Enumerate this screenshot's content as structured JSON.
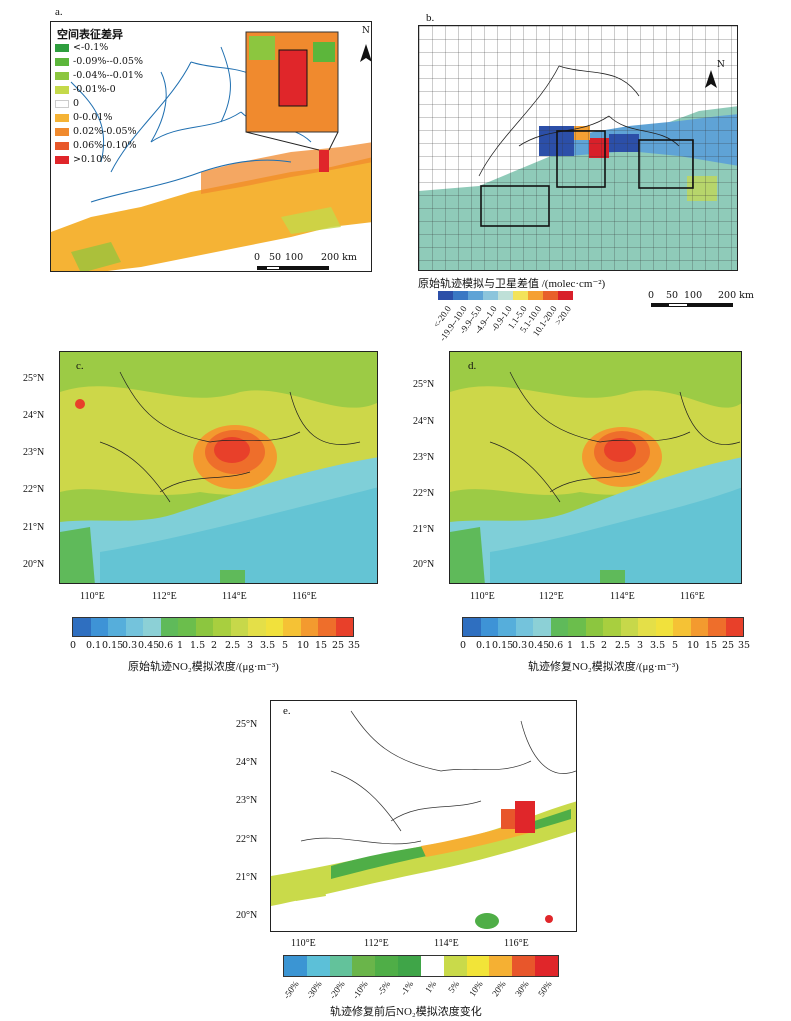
{
  "panels": {
    "a": {
      "label": "a.",
      "legend_title": "空间表征差异",
      "legend": [
        {
          "label": "<-0.1%",
          "color": "#2e9e3e"
        },
        {
          "label": "-0.09%--0.05%",
          "color": "#5cb63b"
        },
        {
          "label": "-0.04%--0.01%",
          "color": "#8cc63f"
        },
        {
          "label": "-0.01%-0",
          "color": "#c4d94a"
        },
        {
          "label": "0",
          "color": "#ffffff"
        },
        {
          "label": "0-0.01%",
          "color": "#f5b335"
        },
        {
          "label": "0.02%-0.05%",
          "color": "#f08a2e"
        },
        {
          "label": "0.06%-0.10%",
          "color": "#e8582a"
        },
        {
          "label": ">0.10%",
          "color": "#e0262a"
        }
      ],
      "north": "N",
      "scale": [
        "0",
        "50",
        "100",
        "200 km"
      ]
    },
    "b": {
      "label": "b.",
      "north": "N",
      "cbar_title": "原始轨迹模拟与卫星差值 /(molec·cm⁻²)",
      "cbar_labels": [
        "<-20.0",
        "-19.9--10.0",
        "-9.9--5.0",
        "-4.9--1.0",
        "-0.9-1.0",
        "1.1-5.0",
        "5.1-10.0",
        "10.1-20.0",
        ">20.0"
      ],
      "cbar_colors": [
        "#2c4fa8",
        "#3a78c4",
        "#5fa3d6",
        "#8cc5dc",
        "#bfe0d8",
        "#f3e35a",
        "#f5a033",
        "#e8602a",
        "#d8202a"
      ],
      "scale": [
        "0",
        "50",
        "100",
        "200 km"
      ]
    },
    "c": {
      "label": "c.",
      "colorbar_title": "原始轨迹NO₂模拟浓度/(μg·m⁻³)"
    },
    "d": {
      "label": "d.",
      "colorbar_title": "轨迹修复NO₂模拟浓度/(μg·m⁻³)"
    },
    "e": {
      "label": "e.",
      "colorbar_title": "轨迹修复前后NO₂模拟浓度变化",
      "cbar_labels": [
        "-50%",
        "-30%",
        "-20%",
        "-10%",
        "-5%",
        "-1%",
        "1%",
        "5%",
        "10%",
        "20%",
        "30%",
        "50%"
      ],
      "cbar_colors": [
        "#3b95d3",
        "#5cc0d8",
        "#63c29b",
        "#6ab54a",
        "#4fae47",
        "#3fa548",
        "#ffffff",
        "#c9da4a",
        "#f2e438",
        "#f5b033",
        "#e8562b",
        "#e0262a"
      ]
    }
  },
  "conc_colorbar": {
    "labels": [
      "0",
      "0.1",
      "0.15",
      "0.3",
      "0.45",
      "0.6",
      "1",
      "1.5",
      "2",
      "2.5",
      "3",
      "3.5",
      "5",
      "10",
      "15",
      "25",
      "35"
    ],
    "colors": [
      "#2f6fc0",
      "#3e93d6",
      "#56aedb",
      "#74c3dc",
      "#8cd0d6",
      "#5fba5a",
      "#6bbe4c",
      "#8cc63f",
      "#a8cf3f",
      "#c7d84a",
      "#e4df48",
      "#f1e13c",
      "#f5c235",
      "#f39a2f",
      "#ee6e2b",
      "#e8402a"
    ]
  },
  "axes": {
    "lat_ticks": [
      "25°N",
      "24°N",
      "23°N",
      "22°N",
      "21°N",
      "20°N"
    ],
    "lon_ticks": [
      "110°E",
      "112°E",
      "114°E",
      "116°E"
    ]
  }
}
